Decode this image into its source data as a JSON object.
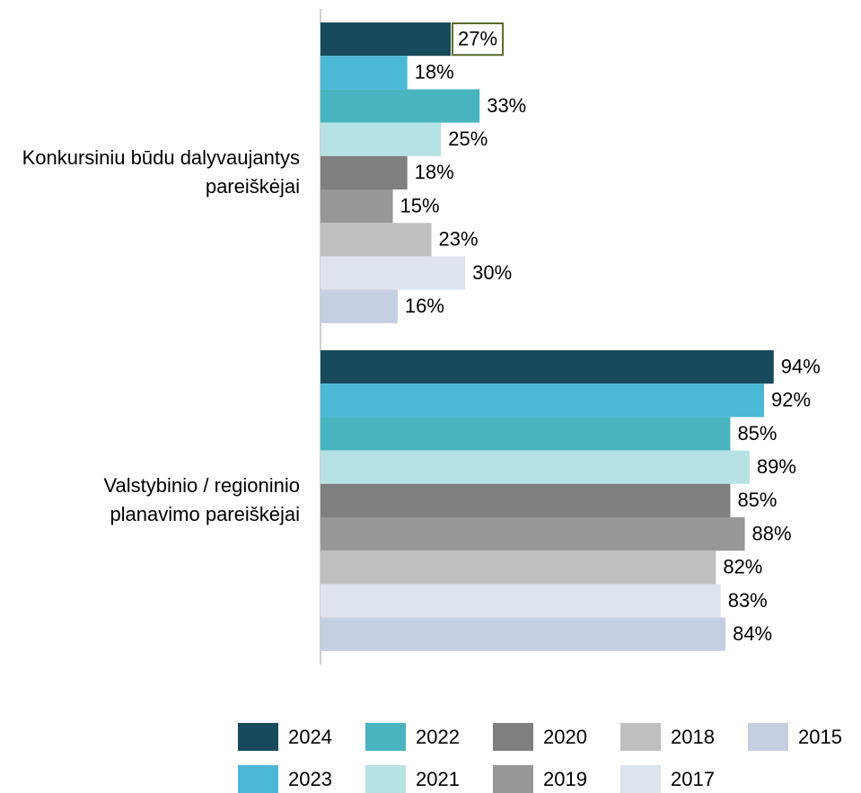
{
  "chart_data": {
    "type": "bar",
    "orientation": "horizontal",
    "categories": [
      "Konkursiniu būdu dalyvaujantys pareiškėjai",
      "Valstybinio / regioninio planavimo pareiškėjai"
    ],
    "xlim": [
      0,
      100
    ],
    "series": [
      {
        "name": "2024",
        "color": "#174a5a",
        "values": [
          27,
          94
        ],
        "value_labels": [
          "27%",
          "94%"
        ]
      },
      {
        "name": "2023",
        "color": "#4bb8d6",
        "values": [
          18,
          92
        ],
        "value_labels": [
          "18%",
          "92%"
        ]
      },
      {
        "name": "2022",
        "color": "#48b4bf",
        "values": [
          33,
          85
        ],
        "value_labels": [
          "33%",
          "85%"
        ]
      },
      {
        "name": "2021",
        "color": "#b7e2e3",
        "values": [
          25,
          89
        ],
        "value_labels": [
          "25%",
          "89%"
        ]
      },
      {
        "name": "2020",
        "color": "#7f7f7f",
        "values": [
          18,
          85
        ],
        "value_labels": [
          "18%",
          "85%"
        ]
      },
      {
        "name": "2019",
        "color": "#979797",
        "values": [
          15,
          88
        ],
        "value_labels": [
          "15%",
          "88%"
        ]
      },
      {
        "name": "2018",
        "color": "#bfbfbf",
        "values": [
          23,
          82
        ],
        "value_labels": [
          "23%",
          "82%"
        ]
      },
      {
        "name": "2017",
        "color": "#dde4ee",
        "values": [
          30,
          83
        ],
        "value_labels": [
          "30%",
          "83%"
        ]
      },
      {
        "name": "2015",
        "color": "#c4cfe2",
        "values": [
          16,
          84
        ],
        "value_labels": [
          "16%",
          "84%"
        ]
      }
    ],
    "legend": "bottom"
  }
}
